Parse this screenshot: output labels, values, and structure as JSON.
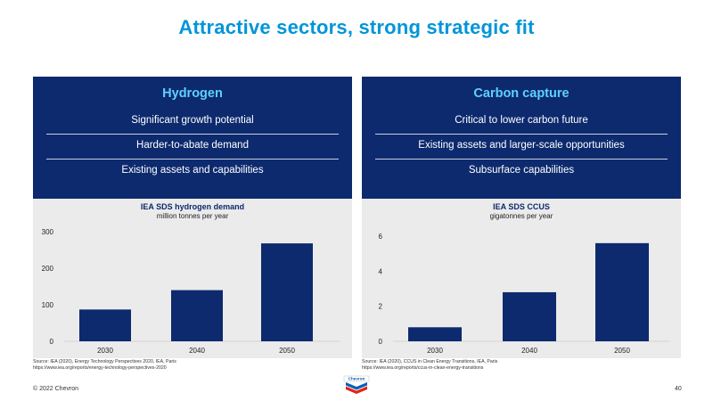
{
  "slide": {
    "title": "Attractive sectors, strong strategic fit",
    "copyright": "© 2022 Chevron",
    "page_number": "40",
    "logo_text": "Chevron"
  },
  "panels": [
    {
      "title": "Hydrogen",
      "items": [
        "Significant growth potential",
        "Harder-to-abate demand",
        "Existing assets and capabilities"
      ],
      "source": [
        "Source: IEA (2020), Energy Technology Perspectives 2020, IEA, Paris",
        "https://www.iea.org/reports/energy-technology-perspectives-2020"
      ]
    },
    {
      "title": "Carbon capture",
      "items": [
        "Critical to lower carbon future",
        "Existing assets and larger-scale opportunities",
        "Subsurface capabilities"
      ],
      "source": [
        "Source: IEA (2020), CCUS in Clean Energy Transitions, IEA, Paris",
        "https://www.iea.org/reports/ccus-in-clean-energy-transitions"
      ]
    }
  ],
  "chart_data": [
    {
      "type": "bar",
      "title": "IEA SDS hydrogen demand",
      "subtitle": "million tonnes per year",
      "categories": [
        "2030",
        "2040",
        "2050"
      ],
      "values": [
        87,
        140,
        268
      ],
      "ylim": [
        0,
        300
      ],
      "yticks": [
        0,
        100,
        200,
        300
      ],
      "bar_color": "#0d2a6e",
      "grid": false
    },
    {
      "type": "bar",
      "title": "IEA SDS CCUS",
      "subtitle": "gigatonnes per year",
      "categories": [
        "2030",
        "2040",
        "2050"
      ],
      "values": [
        0.8,
        2.8,
        5.6
      ],
      "ylim": [
        0,
        6
      ],
      "yticks": [
        0,
        2,
        4,
        6
      ],
      "bar_color": "#0d2a6e",
      "grid": false
    }
  ],
  "colors": {
    "title": "#0095d9",
    "panel_dark": "#0d2a6e",
    "panel_title": "#5fd0ff",
    "panel_light": "#ebebeb",
    "logo_blue": "#0a5fb4",
    "logo_red": "#e2231a"
  }
}
